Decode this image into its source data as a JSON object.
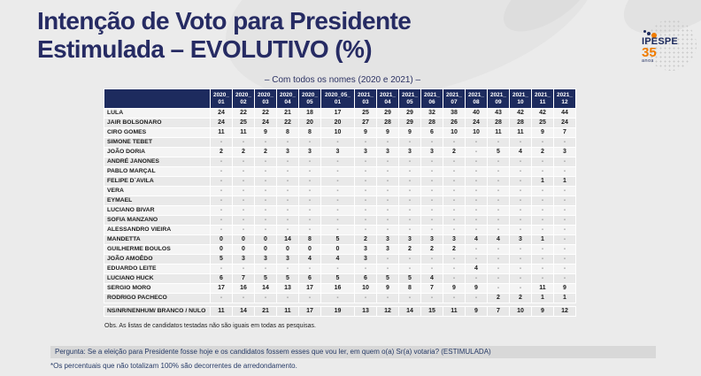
{
  "title": {
    "line1": "Intenção de Voto para Presidente",
    "line2": "Estimulada – EVOLUTIVO (%)"
  },
  "subtitle": "– Com todos os nomes (2020 e 2021) –",
  "logo": {
    "name": "IPESPE",
    "years": "35",
    "years_suffix": "anos"
  },
  "table": {
    "columns": [
      {
        "top": "2020_",
        "bot": "01"
      },
      {
        "top": "2020_",
        "bot": "02"
      },
      {
        "top": "2020_",
        "bot": "03"
      },
      {
        "top": "2020_",
        "bot": "04"
      },
      {
        "top": "2020_",
        "bot": "05"
      },
      {
        "top": "2020_05_",
        "bot": "01"
      },
      {
        "top": "2021_",
        "bot": "03"
      },
      {
        "top": "2021_",
        "bot": "04"
      },
      {
        "top": "2021_",
        "bot": "05"
      },
      {
        "top": "2021_",
        "bot": "06"
      },
      {
        "top": "2021_",
        "bot": "07"
      },
      {
        "top": "2021_",
        "bot": "08"
      },
      {
        "top": "2021_",
        "bot": "09"
      },
      {
        "top": "2021_",
        "bot": "10"
      },
      {
        "top": "2021_",
        "bot": "11"
      },
      {
        "top": "2021_",
        "bot": "12"
      }
    ],
    "rows": [
      {
        "label": "LULA",
        "values": [
          "24",
          "22",
          "22",
          "21",
          "18",
          "17",
          "25",
          "29",
          "29",
          "32",
          "38",
          "40",
          "43",
          "42",
          "42",
          "44"
        ]
      },
      {
        "label": "JAIR BOLSONARO",
        "values": [
          "24",
          "25",
          "24",
          "22",
          "20",
          "20",
          "27",
          "28",
          "29",
          "28",
          "26",
          "24",
          "28",
          "28",
          "25",
          "24"
        ]
      },
      {
        "label": "CIRO GOMES",
        "values": [
          "11",
          "11",
          "9",
          "8",
          "8",
          "10",
          "9",
          "9",
          "9",
          "6",
          "10",
          "10",
          "11",
          "11",
          "9",
          "7"
        ]
      },
      {
        "label": "SIMONE TEBET",
        "values": [
          "-",
          "-",
          "-",
          "-",
          "-",
          "-",
          "-",
          "-",
          "-",
          "-",
          "-",
          "-",
          "-",
          "-",
          "-",
          "-"
        ]
      },
      {
        "label": "JOÃO DORIA",
        "values": [
          "2",
          "2",
          "2",
          "3",
          "3",
          "3",
          "3",
          "3",
          "3",
          "3",
          "2",
          "-",
          "5",
          "4",
          "2",
          "3"
        ]
      },
      {
        "label": "ANDRÉ JANONES",
        "values": [
          "-",
          "-",
          "-",
          "-",
          "-",
          "-",
          "-",
          "-",
          "-",
          "-",
          "-",
          "-",
          "-",
          "-",
          "-",
          "-"
        ]
      },
      {
        "label": "PABLO MARÇAL",
        "values": [
          "-",
          "-",
          "-",
          "-",
          "-",
          "-",
          "-",
          "-",
          "-",
          "-",
          "-",
          "-",
          "-",
          "-",
          "-",
          "-"
        ]
      },
      {
        "label": "FELIPE D´AVILA",
        "values": [
          "-",
          "-",
          "-",
          "-",
          "-",
          "-",
          "-",
          "-",
          "-",
          "-",
          "-",
          "-",
          "-",
          "-",
          "1",
          "1"
        ]
      },
      {
        "label": "VERA",
        "values": [
          "-",
          "-",
          "-",
          "-",
          "-",
          "-",
          "-",
          "-",
          "-",
          "-",
          "-",
          "-",
          "-",
          "-",
          "-",
          "-"
        ]
      },
      {
        "label": "EYMAEL",
        "values": [
          "-",
          "-",
          "-",
          "-",
          "-",
          "-",
          "-",
          "-",
          "-",
          "-",
          "-",
          "-",
          "-",
          "-",
          "-",
          "-"
        ]
      },
      {
        "label": "LUCIANO BIVAR",
        "values": [
          "-",
          "-",
          "-",
          "-",
          "-",
          "-",
          "-",
          "-",
          "-",
          "-",
          "-",
          "-",
          "-",
          "-",
          "-",
          "-"
        ]
      },
      {
        "label": "SOFIA MANZANO",
        "values": [
          "-",
          "-",
          "-",
          "-",
          "-",
          "-",
          "-",
          "-",
          "-",
          "-",
          "-",
          "-",
          "-",
          "-",
          "-",
          "-"
        ]
      },
      {
        "label": "ALESSANDRO VIEIRA",
        "values": [
          "-",
          "-",
          "-",
          "-",
          "-",
          "-",
          "-",
          "-",
          "-",
          "-",
          "-",
          "-",
          "-",
          "-",
          "-",
          "-"
        ]
      },
      {
        "label": "MANDETTA",
        "values": [
          "0",
          "0",
          "0",
          "14",
          "8",
          "5",
          "2",
          "3",
          "3",
          "3",
          "3",
          "4",
          "4",
          "3",
          "1",
          "-"
        ]
      },
      {
        "label": "GUILHERME BOULOS",
        "values": [
          "0",
          "0",
          "0",
          "0",
          "0",
          "0",
          "3",
          "3",
          "2",
          "2",
          "2",
          "-",
          "-",
          "-",
          "-",
          "-"
        ]
      },
      {
        "label": "JOÃO AMOÊDO",
        "values": [
          "5",
          "3",
          "3",
          "3",
          "4",
          "4",
          "3",
          "-",
          "-",
          "-",
          "-",
          "-",
          "-",
          "-",
          "-",
          "-"
        ]
      },
      {
        "label": "EDUARDO LEITE",
        "values": [
          "-",
          "-",
          "-",
          "-",
          "-",
          "-",
          "-",
          "-",
          "-",
          "-",
          "-",
          "4",
          "-",
          "-",
          "-",
          "-"
        ]
      },
      {
        "label": "LUCIANO HUCK",
        "values": [
          "6",
          "7",
          "5",
          "5",
          "6",
          "5",
          "6",
          "5",
          "5",
          "4",
          "-",
          "-",
          "-",
          "-",
          "-",
          "-"
        ]
      },
      {
        "label": "SERGIO MORO",
        "values": [
          "17",
          "16",
          "14",
          "13",
          "17",
          "16",
          "10",
          "9",
          "8",
          "7",
          "9",
          "9",
          "-",
          "-",
          "11",
          "9"
        ]
      },
      {
        "label": "RODRIGO PACHECO",
        "values": [
          "-",
          "-",
          "-",
          "-",
          "-",
          "-",
          "-",
          "-",
          "-",
          "-",
          "-",
          "-",
          "2",
          "2",
          "1",
          "1"
        ]
      }
    ],
    "summary_row": {
      "label": "NS/NR/NENHUM/ BRANCO / NULO",
      "values": [
        "11",
        "14",
        "21",
        "11",
        "17",
        "19",
        "13",
        "12",
        "14",
        "15",
        "11",
        "9",
        "7",
        "10",
        "9",
        "12"
      ]
    },
    "note": "Obs. As listas de candidatos testadas não são iguais em todas as pesquisas."
  },
  "footer": {
    "question": "Pergunta:  Se a eleição para Presidente fosse hoje e os candidatos fossem esses que vou ler, em quem o(a) Sr(a) votaria? (ESTIMULADA)",
    "footnote": "*Os percentuais que não totalizam 100% são decorrentes de arredondamento."
  },
  "colors": {
    "navy": "#262b63",
    "header_bg": "#1d2b5e",
    "orange": "#f07c00",
    "bar_bg": "#d8d8d8"
  }
}
